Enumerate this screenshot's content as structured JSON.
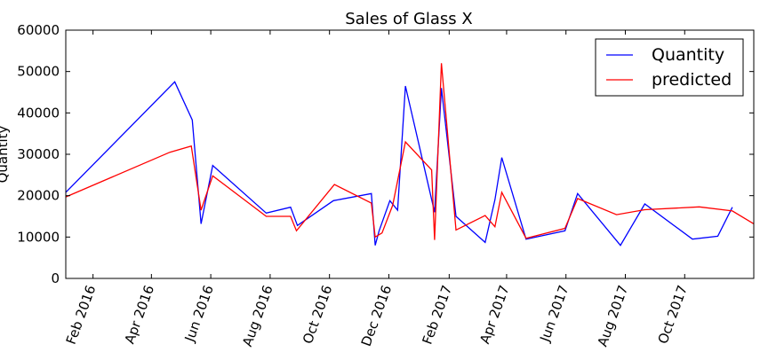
{
  "chart_data": {
    "type": "line",
    "title": "Sales of Glass X",
    "xlabel": "",
    "ylabel": "Quantity",
    "ylim": [
      0,
      60000
    ],
    "xlim": [
      "2016-01-04",
      "2017-12-11"
    ],
    "yticks": [
      0,
      10000,
      20000,
      30000,
      40000,
      50000,
      60000
    ],
    "yticklabels": [
      "0",
      "10000",
      "20000",
      "30000",
      "40000",
      "50000",
      "60000"
    ],
    "xticks": [
      "2016-02-01",
      "2016-04-01",
      "2016-06-01",
      "2016-08-01",
      "2016-10-01",
      "2016-12-01",
      "2017-02-01",
      "2017-04-01",
      "2017-06-01",
      "2017-08-01",
      "2017-10-01"
    ],
    "xticklabels": [
      "Feb 2016",
      "Apr 2016",
      "Jun 2016",
      "Aug 2016",
      "Oct 2016",
      "Dec 2016",
      "Feb 2017",
      "Apr 2017",
      "Jun 2017",
      "Aug 2017",
      "Oct 2017"
    ],
    "grid": false,
    "legend_position": "top-right",
    "series": [
      {
        "name": "Quantity",
        "color": "#0000ff",
        "points": [
          [
            "2016-01-04",
            20800
          ],
          [
            "2016-04-25",
            47500
          ],
          [
            "2016-05-13",
            38300
          ],
          [
            "2016-05-22",
            13200
          ],
          [
            "2016-06-03",
            27300
          ],
          [
            "2016-07-28",
            15800
          ],
          [
            "2016-08-22",
            17200
          ],
          [
            "2016-08-29",
            12800
          ],
          [
            "2016-10-05",
            18800
          ],
          [
            "2016-11-13",
            20500
          ],
          [
            "2016-11-17",
            8000
          ],
          [
            "2016-11-21",
            11500
          ],
          [
            "2016-12-02",
            18800
          ],
          [
            "2016-12-10",
            16500
          ],
          [
            "2016-12-18",
            46500
          ],
          [
            "2017-01-17",
            16000
          ],
          [
            "2017-01-24",
            46000
          ],
          [
            "2017-02-08",
            15000
          ],
          [
            "2017-03-10",
            8700
          ],
          [
            "2017-03-20",
            19000
          ],
          [
            "2017-03-27",
            29200
          ],
          [
            "2017-04-21",
            9500
          ],
          [
            "2017-05-31",
            11500
          ],
          [
            "2017-06-13",
            20500
          ],
          [
            "2017-07-27",
            8000
          ],
          [
            "2017-08-21",
            18000
          ],
          [
            "2017-10-09",
            9500
          ],
          [
            "2017-11-04",
            10200
          ],
          [
            "2017-11-19",
            17200
          ]
        ]
      },
      {
        "name": "predicted",
        "color": "#ff0000",
        "points": [
          [
            "2016-01-04",
            19700
          ],
          [
            "2016-04-20",
            30500
          ],
          [
            "2016-05-12",
            32000
          ],
          [
            "2016-05-22",
            16500
          ],
          [
            "2016-06-03",
            24800
          ],
          [
            "2016-07-28",
            15000
          ],
          [
            "2016-08-22",
            15000
          ],
          [
            "2016-08-28",
            11500
          ],
          [
            "2016-10-06",
            22700
          ],
          [
            "2016-11-13",
            18200
          ],
          [
            "2016-11-17",
            10000
          ],
          [
            "2016-11-24",
            11000
          ],
          [
            "2016-12-05",
            17700
          ],
          [
            "2016-12-18",
            33000
          ],
          [
            "2017-01-14",
            26200
          ],
          [
            "2017-01-17",
            9300
          ],
          [
            "2017-01-24",
            52000
          ],
          [
            "2017-02-08",
            11700
          ],
          [
            "2017-03-10",
            15200
          ],
          [
            "2017-03-20",
            12500
          ],
          [
            "2017-03-27",
            20800
          ],
          [
            "2017-04-21",
            9700
          ],
          [
            "2017-05-31",
            12100
          ],
          [
            "2017-06-13",
            19300
          ],
          [
            "2017-07-23",
            15400
          ],
          [
            "2017-08-21",
            16600
          ],
          [
            "2017-10-16",
            17300
          ],
          [
            "2017-11-19",
            16300
          ],
          [
            "2017-12-11",
            13200
          ]
        ]
      }
    ]
  }
}
